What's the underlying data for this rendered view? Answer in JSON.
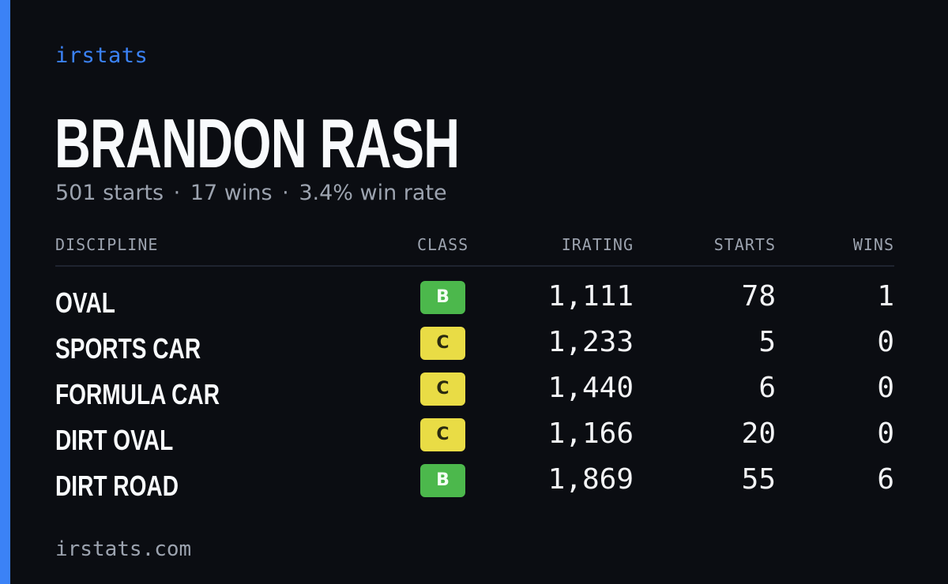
{
  "brand": "irstats",
  "driver": {
    "name": "BRANDON RASH",
    "starts_text": "501 starts",
    "wins_text": "17 wins",
    "winrate_text": "3.4% win rate",
    "separator": "·"
  },
  "table": {
    "headers": {
      "discipline": "DISCIPLINE",
      "class": "CLASS",
      "irating": "IRATING",
      "starts": "STARTS",
      "wins": "WINS"
    },
    "rows": [
      {
        "discipline": "OVAL",
        "class": "B",
        "irating": "1,111",
        "starts": "78",
        "wins": "1"
      },
      {
        "discipline": "SPORTS CAR",
        "class": "C",
        "irating": "1,233",
        "starts": "5",
        "wins": "0"
      },
      {
        "discipline": "FORMULA CAR",
        "class": "C",
        "irating": "1,440",
        "starts": "6",
        "wins": "0"
      },
      {
        "discipline": "DIRT OVAL",
        "class": "C",
        "irating": "1,166",
        "starts": "20",
        "wins": "0"
      },
      {
        "discipline": "DIRT ROAD",
        "class": "B",
        "irating": "1,869",
        "starts": "55",
        "wins": "6"
      }
    ]
  },
  "footer": "irstats.com",
  "colors": {
    "background": "#0b0d12",
    "accent": "#3b82f6",
    "class_b": "#4cb84c",
    "class_c": "#e9dc45",
    "muted_text": "#9ca3af"
  }
}
